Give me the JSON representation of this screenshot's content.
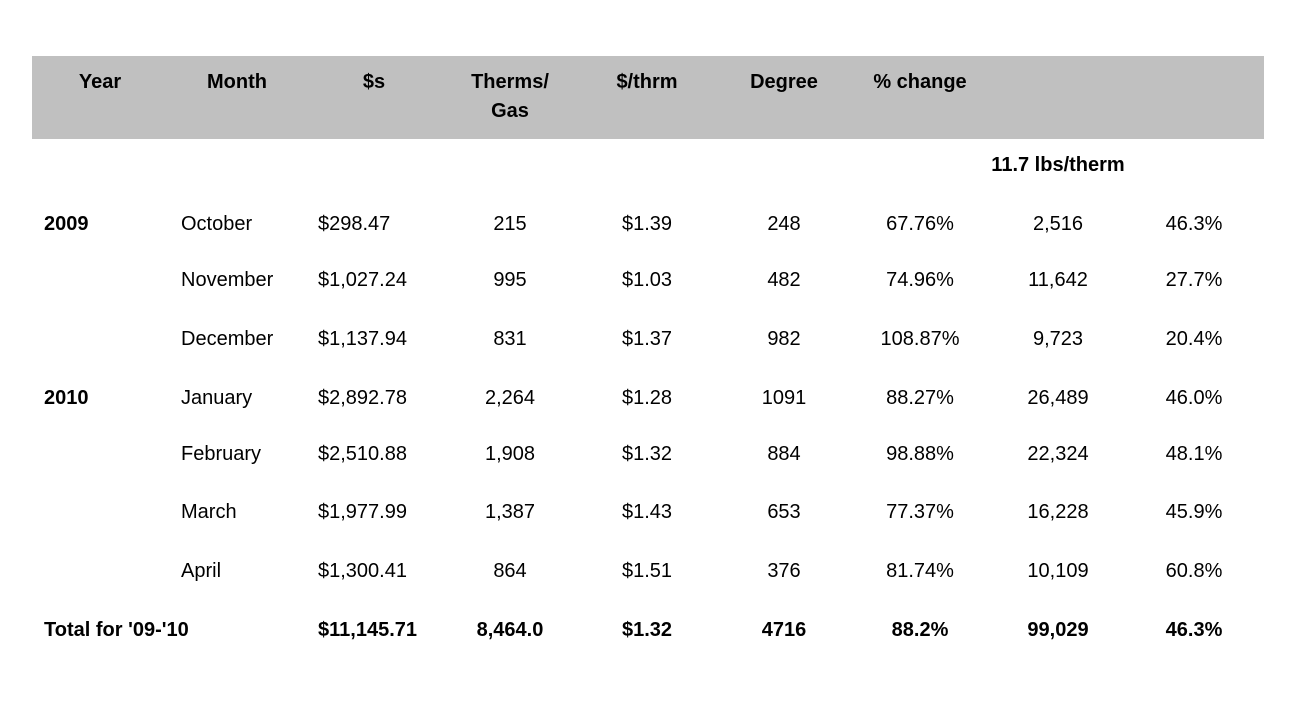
{
  "table": {
    "headers": [
      "Year",
      "Month",
      "$s",
      "Therms/ Gas",
      "$/thrm",
      "Degree",
      "% change",
      "",
      ""
    ],
    "header_lines": {
      "therms_line1": "Therms/",
      "therms_line2": "Gas"
    },
    "subheader_note": "11.7 lbs/therm",
    "rows": [
      [
        "2009",
        "October",
        "$298.47",
        "215",
        "$1.39",
        "248",
        "67.76%",
        "2,516",
        "46.3%"
      ],
      [
        "",
        "November",
        "$1,027.24",
        "995",
        "$1.03",
        "482",
        "74.96%",
        "11,642",
        "27.7%"
      ],
      [
        "",
        "December",
        "$1,137.94",
        "831",
        "$1.37",
        "982",
        "108.87%",
        "9,723",
        "20.4%"
      ],
      [
        "2010",
        "January",
        "$2,892.78",
        "2,264",
        "$1.28",
        "1091",
        "88.27%",
        "26,489",
        "46.0%"
      ],
      [
        "",
        "February",
        "$2,510.88",
        "1,908",
        "$1.32",
        "884",
        "98.88%",
        "22,324",
        "48.1%"
      ],
      [
        "",
        "March",
        "$1,977.99",
        "1,387",
        "$1.43",
        "653",
        "77.37%",
        "16,228",
        "45.9%"
      ],
      [
        "",
        "April",
        "$1,300.41",
        "864",
        "$1.51",
        "376",
        "81.74%",
        "10,109",
        "60.8%"
      ]
    ],
    "total": [
      "Total for '09-'10",
      "",
      "$11,145.71",
      "8,464.0",
      "$1.32",
      "4716",
      "88.2%",
      "99,029",
      "46.3%"
    ]
  },
  "colors": {
    "header_background": "#c0c0c0",
    "text": "#000000",
    "page_background": "#ffffff"
  }
}
